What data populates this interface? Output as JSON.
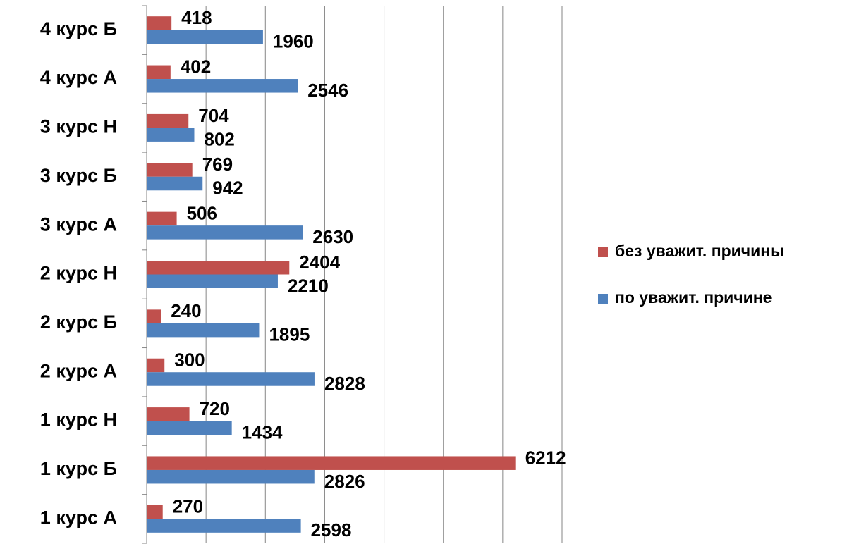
{
  "chart_data": {
    "type": "barh",
    "categories": [
      "1 курс А",
      "1 курс Б",
      "1 курс  Н",
      "2 курс А",
      "2 курс Б",
      "2 курс  Н",
      "3 курс А",
      "3 курс Б",
      "3 курс Н",
      "4 курс А",
      "4 курс Б"
    ],
    "series": [
      {
        "name": "без уважит. причины",
        "color": "#c0504d",
        "values": [
          270,
          6212,
          720,
          300,
          240,
          2404,
          506,
          769,
          704,
          402,
          418
        ]
      },
      {
        "name": "по уважит. причине",
        "color": "#4f81bd",
        "values": [
          2598,
          2826,
          1434,
          2828,
          1895,
          2210,
          2630,
          942,
          802,
          2546,
          1960
        ]
      }
    ],
    "xlim": [
      0,
      7000
    ],
    "xticks": [
      0,
      1000,
      2000,
      3000,
      4000,
      5000,
      6000,
      7000
    ],
    "grid": true,
    "legend": "right"
  }
}
